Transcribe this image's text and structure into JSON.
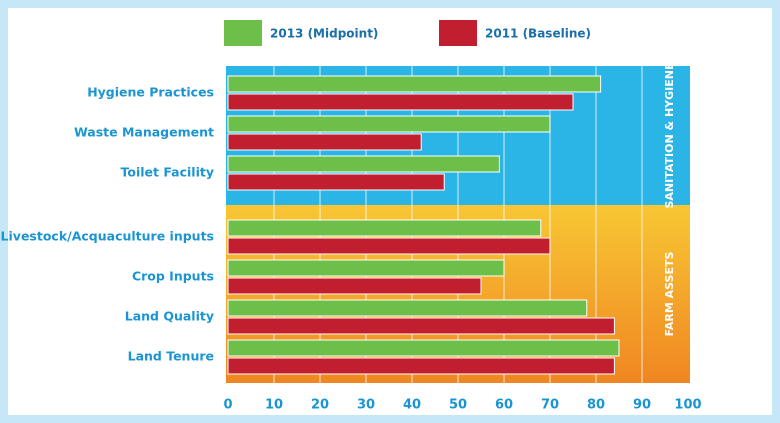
{
  "chart_data": {
    "type": "bar",
    "orientation": "horizontal",
    "groups": [
      {
        "label": "SANITATION & HYGIENE",
        "color": "#2bb4e6",
        "categories": [
          "Hygiene Practices",
          "Waste Management",
          "Toilet Facility"
        ]
      },
      {
        "label": "FARM ASSETS",
        "color": "#f6a62c",
        "categories": [
          "Livestock/Acquaculture inputs",
          "Crop Inputs",
          "Land Quality",
          "Land Tenure"
        ]
      }
    ],
    "series": [
      {
        "name": "2013 (Midpoint)",
        "color": "#6cc04a",
        "values": [
          81,
          70,
          59,
          68,
          60,
          78,
          85
        ]
      },
      {
        "name": "2011 (Baseline)",
        "color": "#c11f2f",
        "values": [
          75,
          42,
          47,
          70,
          55,
          84,
          84
        ]
      }
    ],
    "xlim": [
      0,
      100
    ],
    "xticks": [
      0,
      10,
      20,
      30,
      40,
      50,
      60,
      70,
      80,
      90,
      100
    ],
    "grid": true
  }
}
